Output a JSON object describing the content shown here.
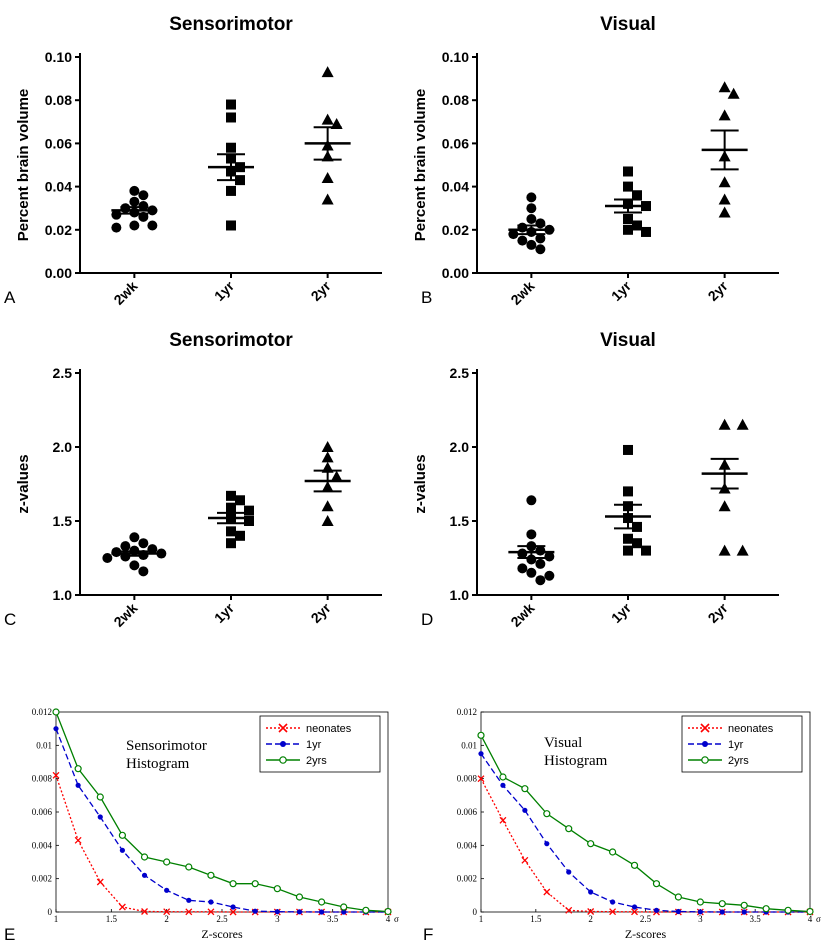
{
  "chart_data": [
    {
      "panel": "A",
      "type": "scatter",
      "title": "Sensorimotor",
      "ylabel": "Percent brain volume",
      "ylim": [
        0,
        0.1
      ],
      "yticks": [
        "0.00",
        "0.02",
        "0.04",
        "0.06",
        "0.08",
        "0.10"
      ],
      "categories": [
        "2wk",
        "1yr",
        "2yr"
      ],
      "markers": [
        "circle",
        "square",
        "triangle"
      ],
      "points": [
        [
          0.038,
          0.036,
          0.033,
          0.031,
          0.03,
          0.029,
          0.028,
          0.027,
          0.026,
          0.022,
          0.022,
          0.021
        ],
        [
          0.078,
          0.072,
          0.058,
          0.053,
          0.049,
          0.047,
          0.043,
          0.038,
          0.022
        ],
        [
          0.093,
          0.071,
          0.069,
          0.059,
          0.054,
          0.044,
          0.034
        ]
      ],
      "mean": [
        0.029,
        0.049,
        0.06
      ],
      "sem": [
        0.0015,
        0.006,
        0.0075
      ]
    },
    {
      "panel": "B",
      "type": "scatter",
      "title": "Visual",
      "ylabel": "Percent brain volume",
      "ylim": [
        0,
        0.1
      ],
      "yticks": [
        "0.00",
        "0.02",
        "0.04",
        "0.06",
        "0.08",
        "0.10"
      ],
      "categories": [
        "2wk",
        "1yr",
        "2yr"
      ],
      "markers": [
        "circle",
        "square",
        "triangle"
      ],
      "points": [
        [
          0.035,
          0.03,
          0.025,
          0.023,
          0.021,
          0.02,
          0.019,
          0.018,
          0.016,
          0.015,
          0.013,
          0.011
        ],
        [
          0.047,
          0.04,
          0.036,
          0.032,
          0.031,
          0.025,
          0.022,
          0.02,
          0.019
        ],
        [
          0.086,
          0.083,
          0.073,
          0.054,
          0.042,
          0.034,
          0.028
        ]
      ],
      "mean": [
        0.02,
        0.031,
        0.057
      ],
      "sem": [
        0.002,
        0.003,
        0.009
      ]
    },
    {
      "panel": "C",
      "type": "scatter",
      "title": "Sensorimotor",
      "ylabel": "z-values",
      "ylim": [
        1.0,
        2.5
      ],
      "yticks": [
        "1.0",
        "1.5",
        "2.0",
        "2.5"
      ],
      "categories": [
        "2wk",
        "1yr",
        "2yr"
      ],
      "markers": [
        "circle",
        "square",
        "triangle"
      ],
      "points": [
        [
          1.39,
          1.35,
          1.33,
          1.31,
          1.3,
          1.29,
          1.28,
          1.27,
          1.26,
          1.25,
          1.2,
          1.16
        ],
        [
          1.67,
          1.64,
          1.59,
          1.57,
          1.52,
          1.5,
          1.43,
          1.4,
          1.35
        ],
        [
          2.0,
          1.93,
          1.86,
          1.8,
          1.73,
          1.6,
          1.5
        ]
      ],
      "mean": [
        1.28,
        1.52,
        1.77
      ],
      "sem": [
        0.015,
        0.035,
        0.07
      ]
    },
    {
      "panel": "D",
      "type": "scatter",
      "title": "Visual",
      "ylabel": "z-values",
      "ylim": [
        1.0,
        2.5
      ],
      "yticks": [
        "1.0",
        "1.5",
        "2.0",
        "2.5"
      ],
      "categories": [
        "2wk",
        "1yr",
        "2yr"
      ],
      "markers": [
        "circle",
        "square",
        "triangle"
      ],
      "points": [
        [
          1.64,
          1.41,
          1.33,
          1.3,
          1.28,
          1.26,
          1.24,
          1.21,
          1.18,
          1.15,
          1.13,
          1.1
        ],
        [
          1.98,
          1.7,
          1.6,
          1.52,
          1.46,
          1.38,
          1.35,
          1.3,
          1.3
        ],
        [
          2.15,
          2.15,
          1.88,
          1.72,
          1.6,
          1.3,
          1.3
        ]
      ],
      "mean": [
        1.29,
        1.53,
        1.82
      ],
      "sem": [
        0.04,
        0.08,
        0.1
      ]
    },
    {
      "panel": "E",
      "type": "line",
      "title": "Sensorimotor\nHistogram",
      "xlabel": "Z-scores",
      "xlim": [
        1,
        4
      ],
      "ylim": [
        0,
        0.012
      ],
      "xticks": [
        "1",
        "1.5",
        "2",
        "2.5",
        "3",
        "3.5",
        "4"
      ],
      "xtick_suffix": "σ",
      "yticks": [
        "0",
        "0.002",
        "0.004",
        "0.006",
        "0.008",
        "0.01",
        "0.012"
      ],
      "x": [
        1.0,
        1.2,
        1.4,
        1.6,
        1.8,
        2.0,
        2.2,
        2.4,
        2.6,
        2.8,
        3.0,
        3.2,
        3.4,
        3.6,
        3.8,
        4.0
      ],
      "series": [
        {
          "name": "neonates",
          "color": "#ff0000",
          "style": "dotted",
          "marker": "x",
          "values": [
            0.0082,
            0.0043,
            0.0018,
            0.0003,
            3e-05,
            2e-05,
            1e-05,
            1e-05,
            0,
            0,
            0,
            0,
            0,
            0,
            0,
            0
          ]
        },
        {
          "name": "1yr",
          "color": "#0000cc",
          "style": "dashed",
          "marker": "dot",
          "values": [
            0.011,
            0.0076,
            0.0057,
            0.0037,
            0.0022,
            0.0013,
            0.0007,
            0.0006,
            0.0003,
            5e-05,
            2e-05,
            1e-05,
            0,
            0,
            0,
            0
          ]
        },
        {
          "name": "2yrs",
          "color": "#008000",
          "style": "solid",
          "marker": "circle",
          "values": [
            0.012,
            0.0086,
            0.0069,
            0.0046,
            0.0033,
            0.003,
            0.0027,
            0.0022,
            0.0017,
            0.0017,
            0.0014,
            0.0009,
            0.0006,
            0.0003,
            0.0001,
            3e-05
          ]
        }
      ],
      "legend": "top-right"
    },
    {
      "panel": "F",
      "type": "line",
      "title": "Visual\nHistogram",
      "xlabel": "Z-scores",
      "xlim": [
        1,
        4
      ],
      "ylim": [
        0,
        0.012
      ],
      "xticks": [
        "1",
        "1.5",
        "2",
        "2.5",
        "3",
        "3.5",
        "4"
      ],
      "xtick_suffix": "σ",
      "yticks": [
        "0",
        "0.002",
        "0.004",
        "0.006",
        "0.008",
        "0.01",
        "0.012"
      ],
      "x": [
        1.0,
        1.2,
        1.4,
        1.6,
        1.8,
        2.0,
        2.2,
        2.4,
        2.6,
        2.8,
        3.0,
        3.2,
        3.4,
        3.6,
        3.8,
        4.0
      ],
      "series": [
        {
          "name": "neonates",
          "color": "#ff0000",
          "style": "dotted",
          "marker": "x",
          "values": [
            0.008,
            0.0055,
            0.0031,
            0.0012,
            0.0001,
            3e-05,
            2e-05,
            1e-05,
            0,
            0,
            0,
            0,
            0,
            0,
            0,
            0
          ]
        },
        {
          "name": "1yr",
          "color": "#0000cc",
          "style": "dashed",
          "marker": "dot",
          "values": [
            0.0095,
            0.0076,
            0.0061,
            0.0041,
            0.0024,
            0.0012,
            0.0006,
            0.0003,
            0.0001,
            3e-05,
            1e-05,
            0,
            0,
            0,
            0,
            0
          ]
        },
        {
          "name": "2yrs",
          "color": "#008000",
          "style": "solid",
          "marker": "circle",
          "values": [
            0.0106,
            0.0081,
            0.0074,
            0.0059,
            0.005,
            0.0041,
            0.0036,
            0.0028,
            0.0017,
            0.0009,
            0.0006,
            0.0005,
            0.0004,
            0.0002,
            0.0001,
            3e-05
          ]
        }
      ],
      "legend": "top-right"
    }
  ]
}
